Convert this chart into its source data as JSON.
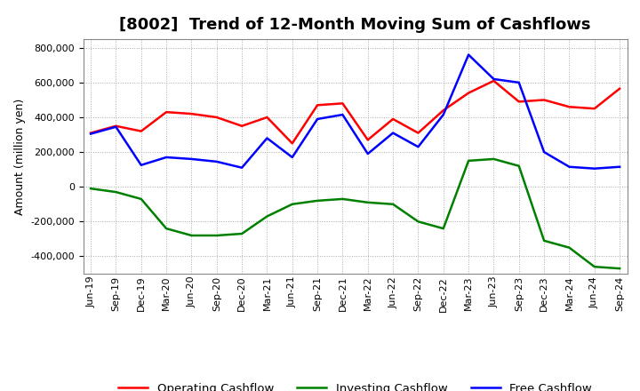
{
  "title": "[8002]  Trend of 12-Month Moving Sum of Cashflows",
  "ylabel": "Amount (million yen)",
  "x_labels": [
    "Jun-19",
    "Sep-19",
    "Dec-19",
    "Mar-20",
    "Jun-20",
    "Sep-20",
    "Dec-20",
    "Mar-21",
    "Jun-21",
    "Sep-21",
    "Dec-21",
    "Mar-22",
    "Jun-22",
    "Sep-22",
    "Dec-22",
    "Mar-23",
    "Jun-23",
    "Sep-23",
    "Dec-23",
    "Mar-24",
    "Jun-24",
    "Sep-24"
  ],
  "operating_cashflow": [
    310000,
    350000,
    320000,
    430000,
    420000,
    400000,
    350000,
    400000,
    250000,
    470000,
    480000,
    270000,
    390000,
    310000,
    440000,
    540000,
    610000,
    490000,
    500000,
    460000,
    450000,
    565000
  ],
  "investing_cashflow": [
    -10000,
    -30000,
    -70000,
    -240000,
    -280000,
    -280000,
    -270000,
    -170000,
    -100000,
    -80000,
    -70000,
    -90000,
    -100000,
    -200000,
    -240000,
    150000,
    160000,
    120000,
    -310000,
    -350000,
    -460000,
    -470000
  ],
  "free_cashflow": [
    305000,
    345000,
    125000,
    170000,
    160000,
    145000,
    110000,
    280000,
    170000,
    390000,
    415000,
    190000,
    310000,
    230000,
    415000,
    760000,
    620000,
    600000,
    200000,
    115000,
    105000,
    115000
  ],
  "operating_color": "#ff0000",
  "investing_color": "#008000",
  "free_color": "#0000ff",
  "line_width": 1.8,
  "ylim": [
    -500000,
    850000
  ],
  "yticks": [
    -400000,
    -200000,
    0,
    200000,
    400000,
    600000,
    800000
  ],
  "background_color": "#ffffff",
  "grid_color": "#aaaaaa",
  "title_fontsize": 13,
  "legend_fontsize": 9.5,
  "tick_fontsize": 8,
  "ylabel_fontsize": 9
}
